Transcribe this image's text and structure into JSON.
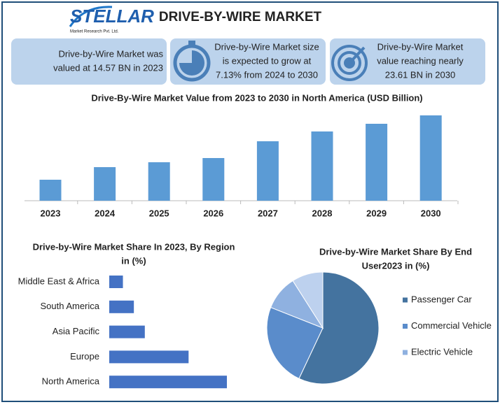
{
  "header": {
    "logo": "STELLAR",
    "logo_sub": "Market Research Pvt. Ltd.",
    "title": "DRIVE-BY-WIRE MARKET"
  },
  "stats": [
    [
      "Drive-by-Wire Market was",
      "valued at 14.57 BN in 2023"
    ],
    [
      "Drive-by-Wire Market size",
      "is expected to grow at",
      "7.13% from 2024 to 2030"
    ],
    [
      "Drive-by-Wire Market",
      "value reaching nearly",
      "23.61 BN in 2030"
    ]
  ],
  "chart_data": [
    {
      "type": "bar",
      "title": [
        "Drive-By-Wire Market Value from 2023 to 2030 in North America (USD Billion)"
      ],
      "categories": [
        "2023",
        "2024",
        "2025",
        "2026",
        "2027",
        "2028",
        "2029",
        "2030"
      ],
      "values": [
        3.0,
        4.8,
        5.5,
        6.1,
        8.5,
        9.9,
        11.0,
        12.2
      ],
      "color": "#5b9bd5"
    },
    {
      "type": "hbar",
      "title": [
        "Drive-by-Wire Market Share In 2023, By Region",
        "in (%)"
      ],
      "categories": [
        "Middle East & Africa",
        "South America",
        "Asia Pacific",
        "Europe",
        "North America"
      ],
      "values": [
        5,
        9,
        13,
        29,
        43
      ],
      "color": "#4472c4"
    },
    {
      "type": "pie",
      "title": [
        "Drive-by-Wire Market Share By End",
        "User2023 in (%)"
      ],
      "categories": [
        "Passenger Car",
        "Commercial Vehicle",
        "Electric Vehicle",
        null
      ],
      "values": [
        57,
        24,
        10,
        9
      ],
      "colors": [
        "#44739f",
        "#5a8ccb",
        "#8fb1e0",
        "#bdd1ee"
      ]
    }
  ]
}
